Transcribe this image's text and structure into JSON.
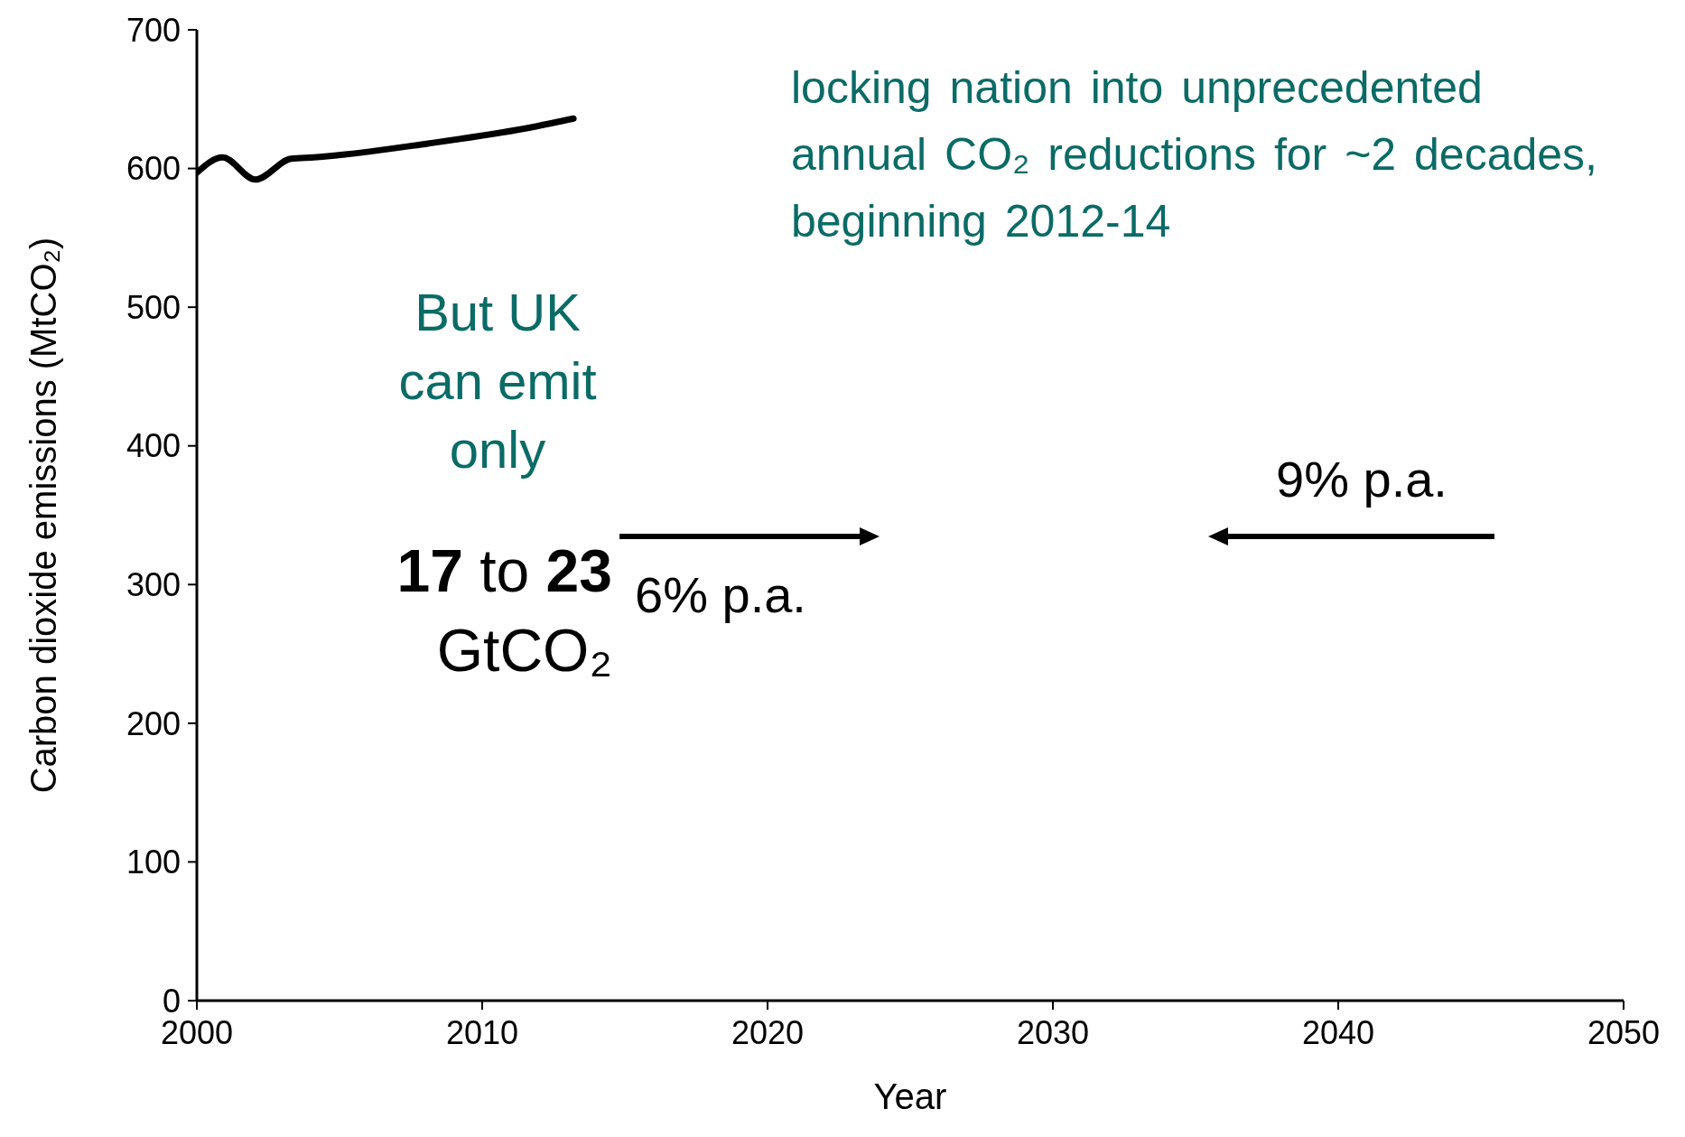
{
  "chart_data": {
    "type": "line",
    "xlabel": "Year",
    "ylabel": "Carbon dioxide emissions (MtCO₂)",
    "x": [
      2000,
      2000.9,
      2002.05,
      2003.3,
      2004.1,
      2008.1,
      2011.8,
      2013.2
    ],
    "series": [
      {
        "color": "#000000",
        "values": [
          597,
          608,
          592,
          607,
          608,
          618,
          630,
          636
        ]
      }
    ],
    "xlim": [
      2000,
      2050
    ],
    "xticks": [
      2000,
      2010,
      2020,
      2030,
      2040,
      2050
    ],
    "ylim": [
      0,
      700
    ],
    "yticks": [
      0,
      100,
      200,
      300,
      400,
      500,
      600,
      700
    ],
    "grid": false,
    "legend": false,
    "marker": "none",
    "line_style": "solid",
    "annotations": [
      "locking nation into unprecedented annual CO₂ reductions for ~2 decades, beginning 2012-14",
      "But UK can emit only",
      "17 to 23 GtCO₂",
      "6% p.a.",
      "9% p.a."
    ]
  }
}
